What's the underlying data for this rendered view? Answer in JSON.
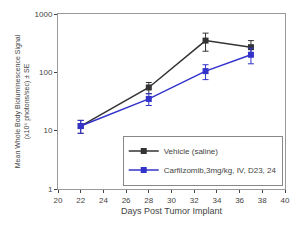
{
  "chart_data": {
    "type": "line",
    "x": [
      22,
      28,
      33,
      37
    ],
    "series": [
      {
        "name": "Vehicle (saline)",
        "color": "#333333",
        "marker": "square",
        "line_style": "solid",
        "values": [
          12,
          55,
          350,
          270
        ],
        "error_low": [
          3,
          12,
          120,
          80
        ],
        "error_high": [
          3,
          12,
          120,
          80
        ]
      },
      {
        "name": "Carfilzomib,3mg/kg, IV, D23, 24",
        "color": "#3333cc",
        "marker": "square",
        "line_style": "solid",
        "values": [
          12,
          35,
          105,
          200
        ],
        "error_low": [
          3,
          8,
          30,
          60
        ],
        "error_high": [
          3,
          8,
          30,
          60
        ]
      }
    ],
    "xlabel": "Days Post Tumor Implant",
    "ylabel": "Mean Whole Body Bioluminescence Signal\n(x10⁶ photons/sec) ± SE",
    "xlim": [
      20,
      40
    ],
    "ylim": [
      1,
      1000
    ],
    "xticks": [
      20,
      22,
      24,
      26,
      28,
      30,
      32,
      34,
      36,
      38,
      40
    ],
    "yticks": [
      1,
      10,
      100,
      1000
    ],
    "log": "y",
    "grid": false,
    "legend": "lower right"
  }
}
